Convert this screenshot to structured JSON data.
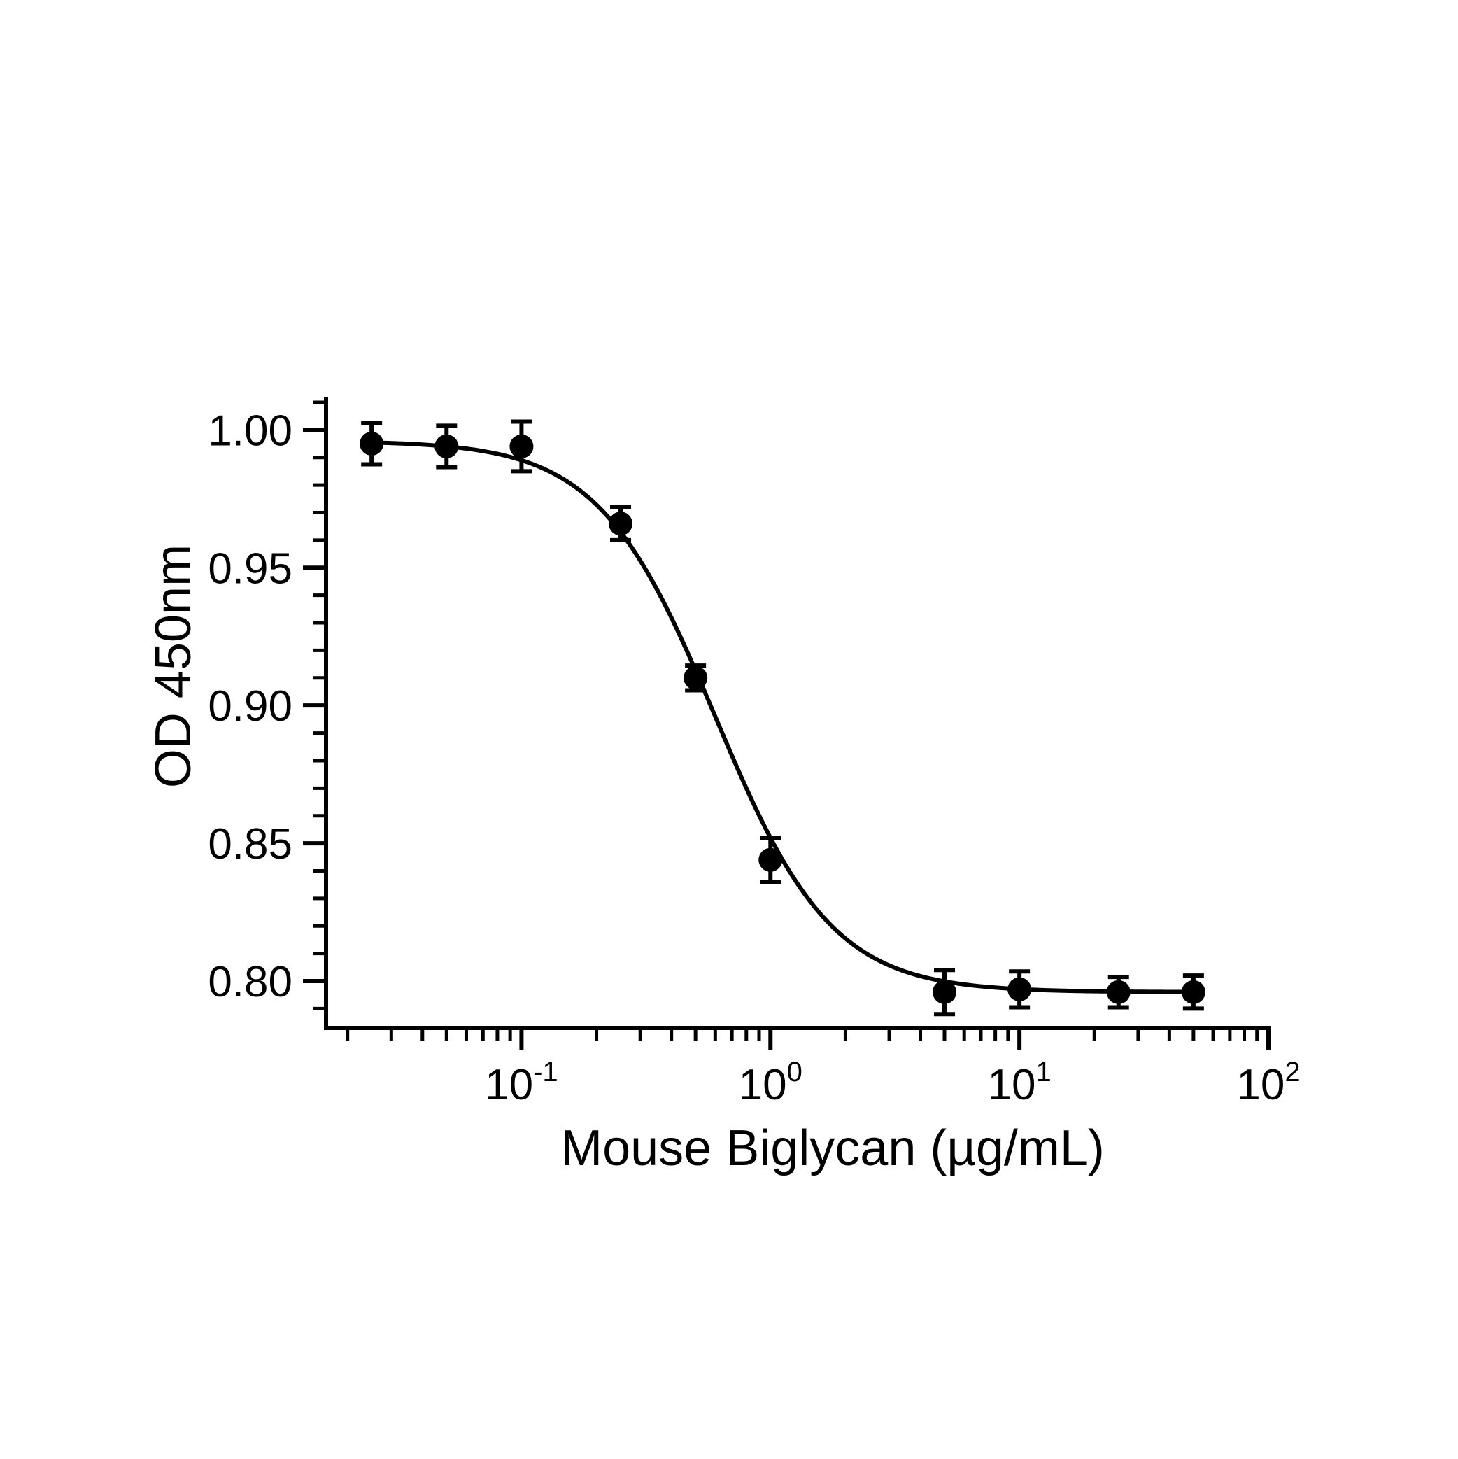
{
  "chart_data": {
    "type": "scatter",
    "xlabel": "Mouse Biglycan (µg/mL)",
    "ylabel": "OD 450nm",
    "x_scale": "log",
    "xlim": [
      0.0164,
      100
    ],
    "ylim": [
      0.783,
      1.011
    ],
    "grid": false,
    "y_ticks": [
      {
        "value": 1.0,
        "label": "1.00"
      },
      {
        "value": 0.95,
        "label": "0.95"
      },
      {
        "value": 0.9,
        "label": "0.90"
      },
      {
        "value": 0.85,
        "label": "0.85"
      },
      {
        "value": 0.8,
        "label": "0.80"
      }
    ],
    "y_minor_step": 0.01,
    "x_ticks": [
      {
        "value": 0.1,
        "base": "10",
        "exp": "-1"
      },
      {
        "value": 1,
        "base": "10",
        "exp": "0"
      },
      {
        "value": 10,
        "base": "10",
        "exp": "1"
      },
      {
        "value": 100,
        "base": "10",
        "exp": "2"
      }
    ],
    "points": [
      {
        "x": 0.025,
        "y": 0.995,
        "err": 0.0075
      },
      {
        "x": 0.05,
        "y": 0.994,
        "err": 0.0075
      },
      {
        "x": 0.1,
        "y": 0.994,
        "err": 0.009
      },
      {
        "x": 0.25,
        "y": 0.966,
        "err": 0.006
      },
      {
        "x": 0.5,
        "y": 0.91,
        "err": 0.0045
      },
      {
        "x": 1,
        "y": 0.844,
        "err": 0.008
      },
      {
        "x": 5,
        "y": 0.796,
        "err": 0.008
      },
      {
        "x": 10,
        "y": 0.797,
        "err": 0.0065
      },
      {
        "x": 25,
        "y": 0.796,
        "err": 0.0055
      },
      {
        "x": 50,
        "y": 0.796,
        "err": 0.006
      }
    ],
    "fit": {
      "model": "4PL",
      "top": 0.996,
      "bottom": 0.796,
      "ec50": 0.6,
      "hill": 1.85
    }
  }
}
